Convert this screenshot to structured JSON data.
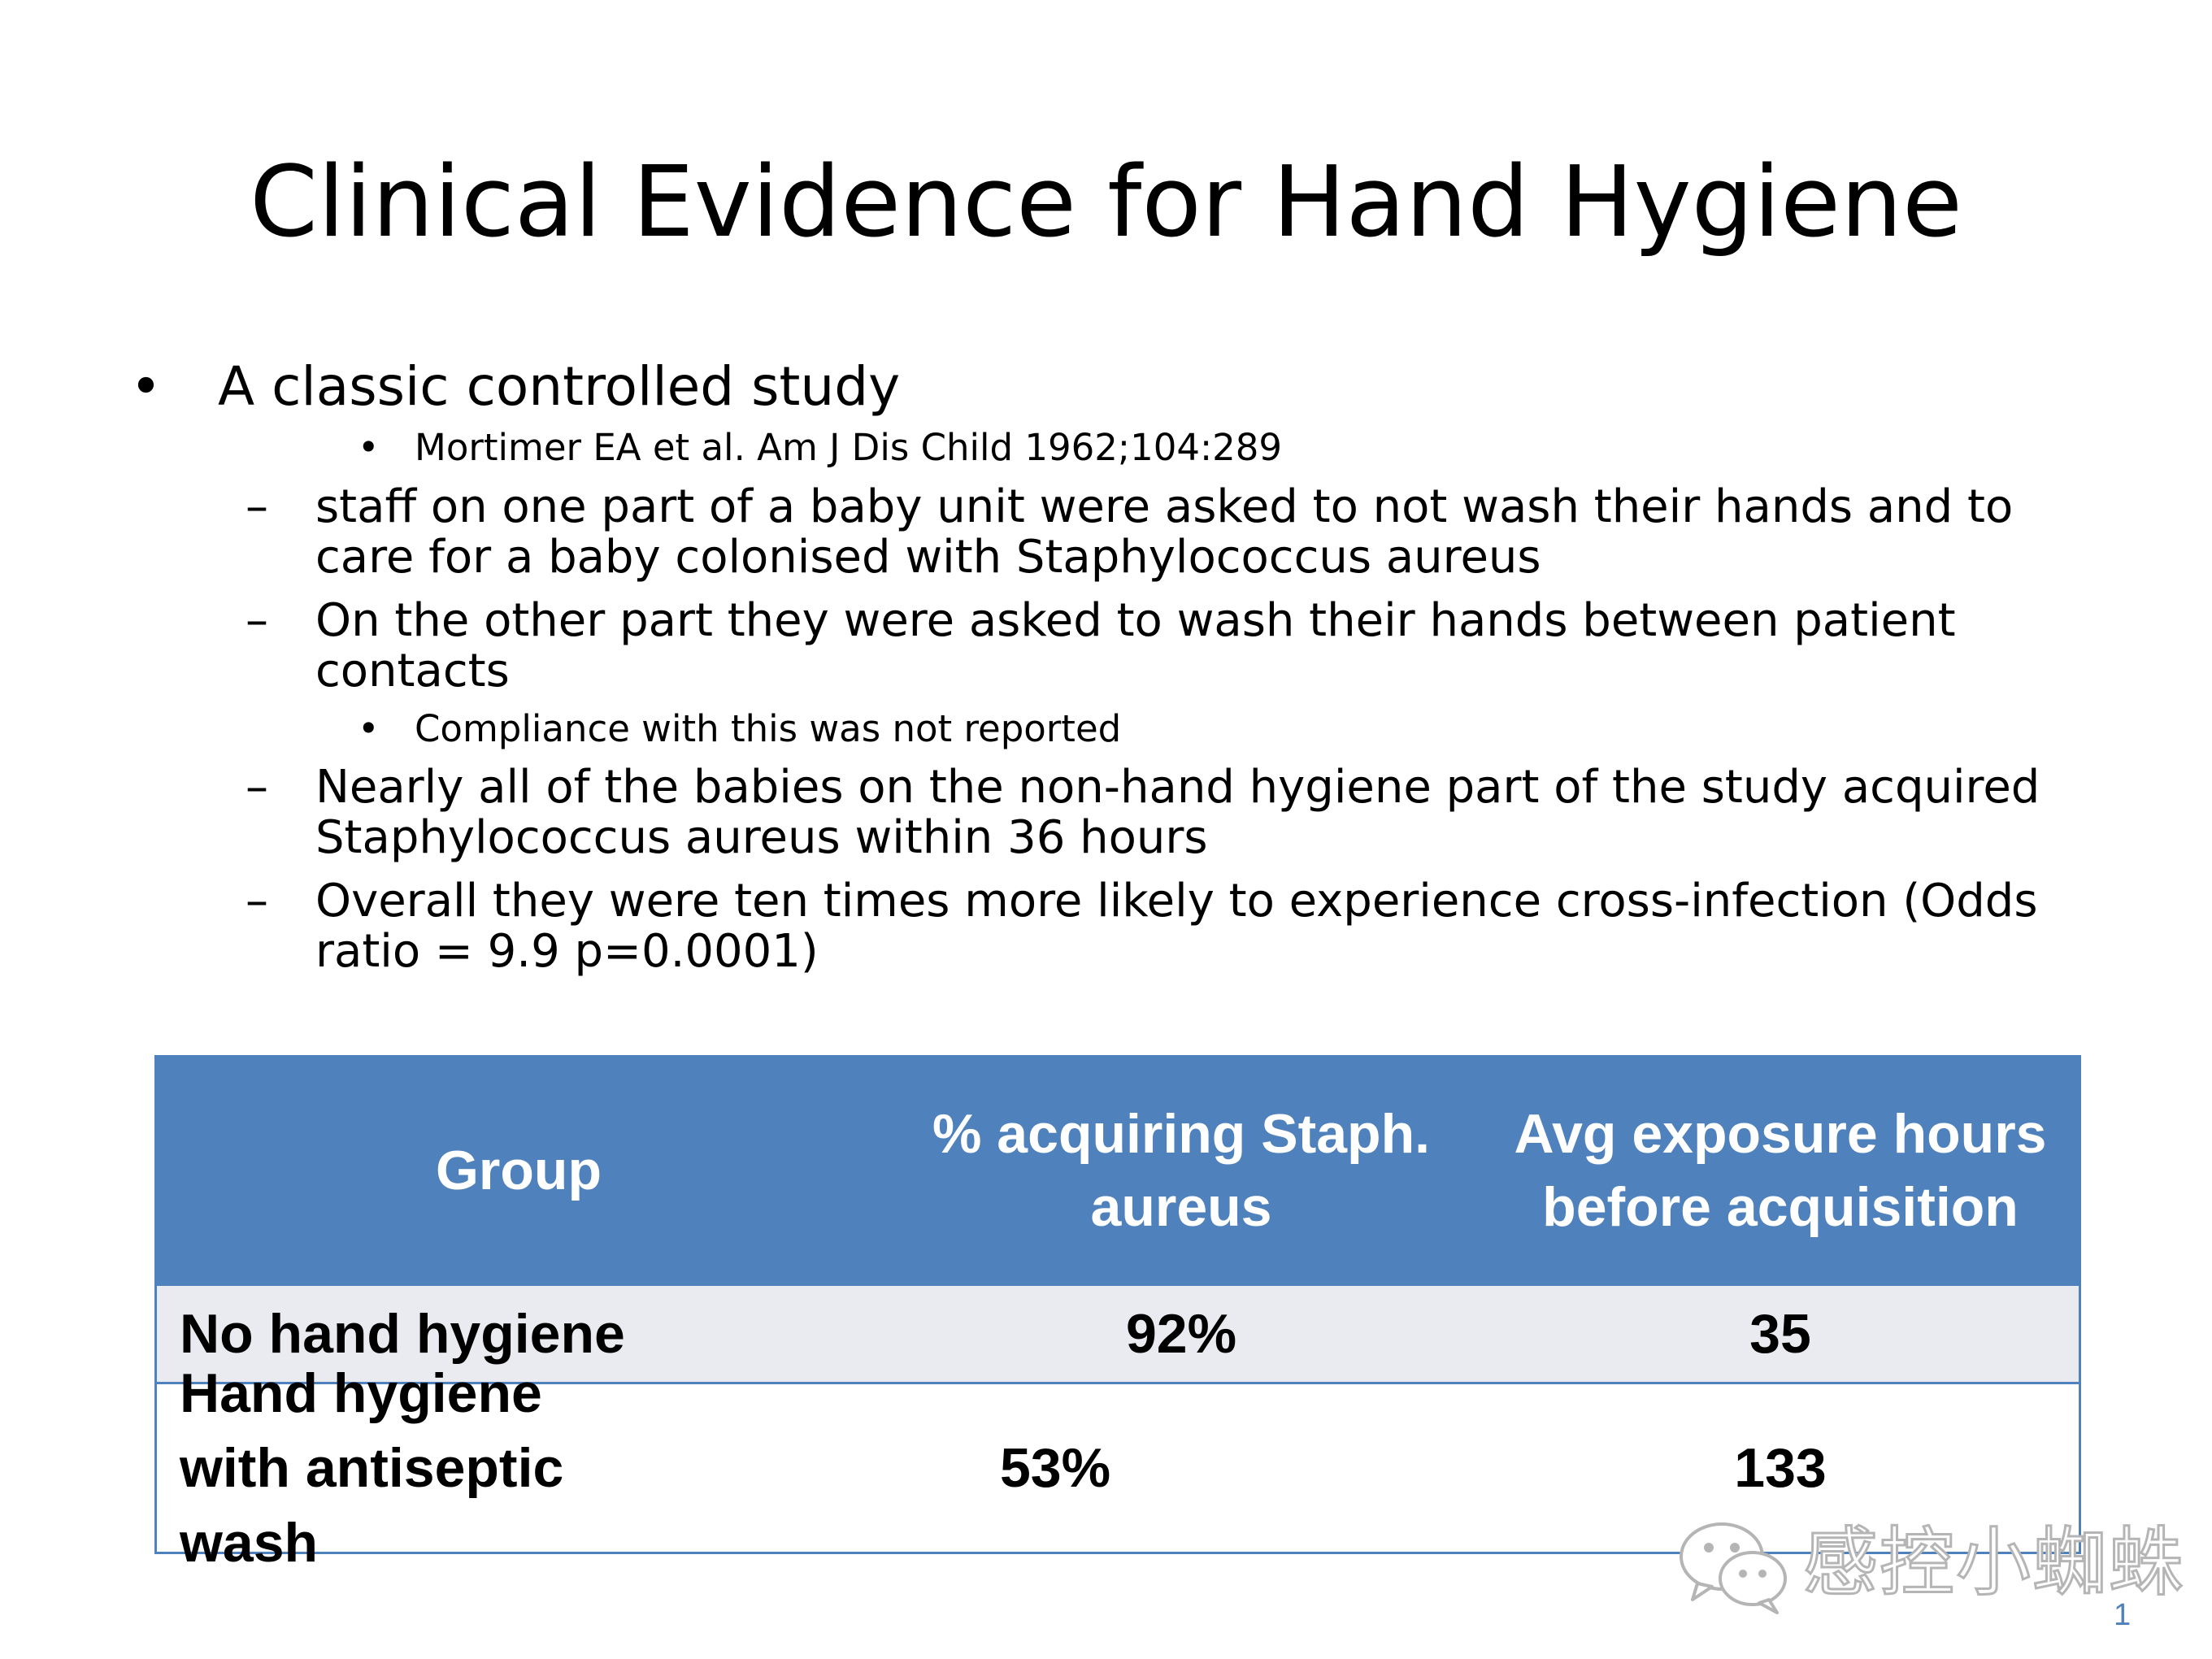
{
  "slide": {
    "title": "Clinical Evidence for Hand Hygiene",
    "bullet_marker": "•",
    "dash_marker": "–",
    "main_bullet": "A classic controlled study",
    "citation": "Mortimer EA et al.   Am J Dis Child  1962;104:289",
    "points": [
      "staff on one part of a baby unit were asked to not wash their hands and to care for a baby colonised with Staphylococcus aureus",
      "On the other part they were asked to wash their hands between patient contacts",
      "Nearly all of the babies on the non-hand hygiene part of the study acquired Staphylococcus aureus within 36 hours",
      "Overall they were ten times more likely to experience cross-infection (Odds ratio = 9.9 p=0.0001)"
    ],
    "sub_note": "Compliance with this was not reported",
    "slide_number": "1"
  },
  "table": {
    "headers": [
      "Group",
      "% acquiring Staph. aureus",
      "Avg exposure hours before acquisition"
    ],
    "rows": [
      [
        "No hand hygiene",
        "92%",
        "35"
      ],
      [
        "Hand hygiene with antiseptic wash",
        "53%",
        "133"
      ]
    ]
  },
  "watermark": {
    "text": "感控小蜘蛛",
    "icon": "wechat-icon"
  },
  "colors": {
    "table_header": "#4f81bd",
    "row_shade": "#e9ebf0",
    "slide_number": "#4f81bd"
  }
}
